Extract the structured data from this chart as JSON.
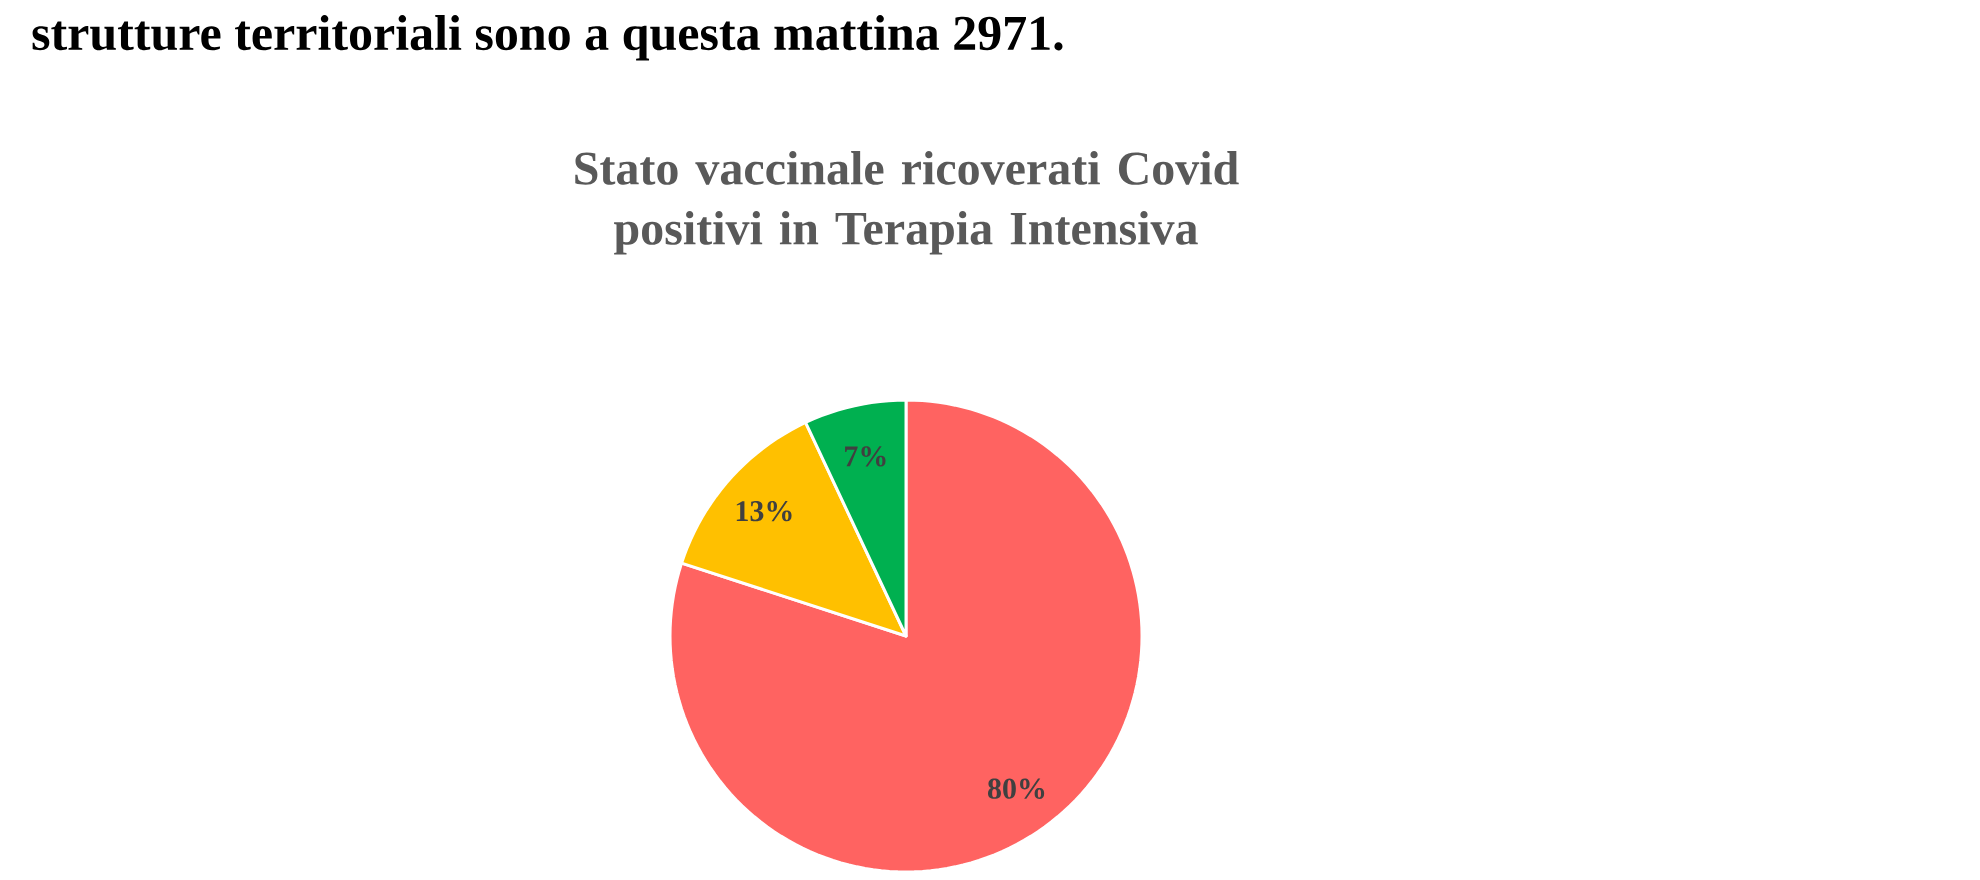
{
  "chart_data": {
    "type": "pie",
    "title": "Stato vaccinale ricoverati Covid positivi in Terapia Intensiva",
    "annotations": [
      "strutture territoriali sono a questa mattina 2971."
    ],
    "categories": [
      null,
      null,
      null
    ],
    "values": [
      80,
      13,
      7
    ],
    "value_labels": [
      "80%",
      "13%",
      "7%"
    ],
    "colors": [
      "#ff6361",
      "#ffc000",
      "#00b050"
    ]
  }
}
